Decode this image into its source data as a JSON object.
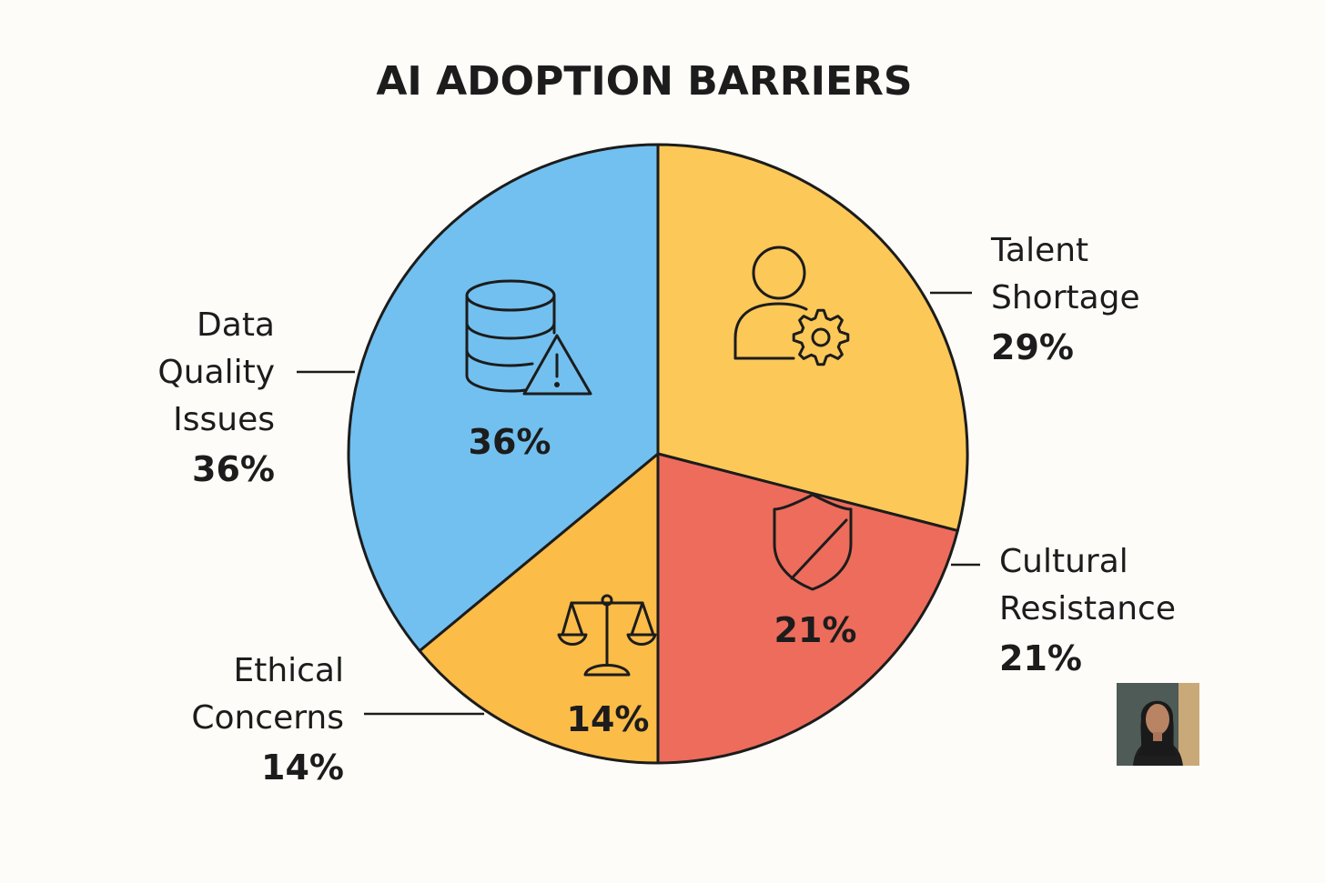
{
  "chart_data": {
    "type": "pie",
    "title": "AI ADOPTION BARRIERS",
    "categories": [
      "Talent Shortage",
      "Cultural Resistance",
      "Ethical Concerns",
      "Data Quality Issues"
    ],
    "values": [
      29,
      21,
      14,
      36
    ],
    "value_labels": [
      "29%",
      "21%",
      "14%",
      "36%"
    ],
    "colors": [
      "#fcc858",
      "#ed6c5c",
      "#fbbc48",
      "#72c0ef"
    ],
    "icons": [
      "user-gear-icon",
      "shield-slash-icon",
      "scales-icon",
      "database-warning-icon"
    ],
    "legend_lines": [
      [
        "Talent",
        "Shortage"
      ],
      [
        "Cultural",
        "Resistance"
      ],
      [
        "Ethical",
        "Concerns"
      ],
      [
        "Data",
        "Quality",
        "Issues"
      ]
    ]
  },
  "avatar": {
    "icon": "person-portrait-icon",
    "background": "#c9a978"
  }
}
